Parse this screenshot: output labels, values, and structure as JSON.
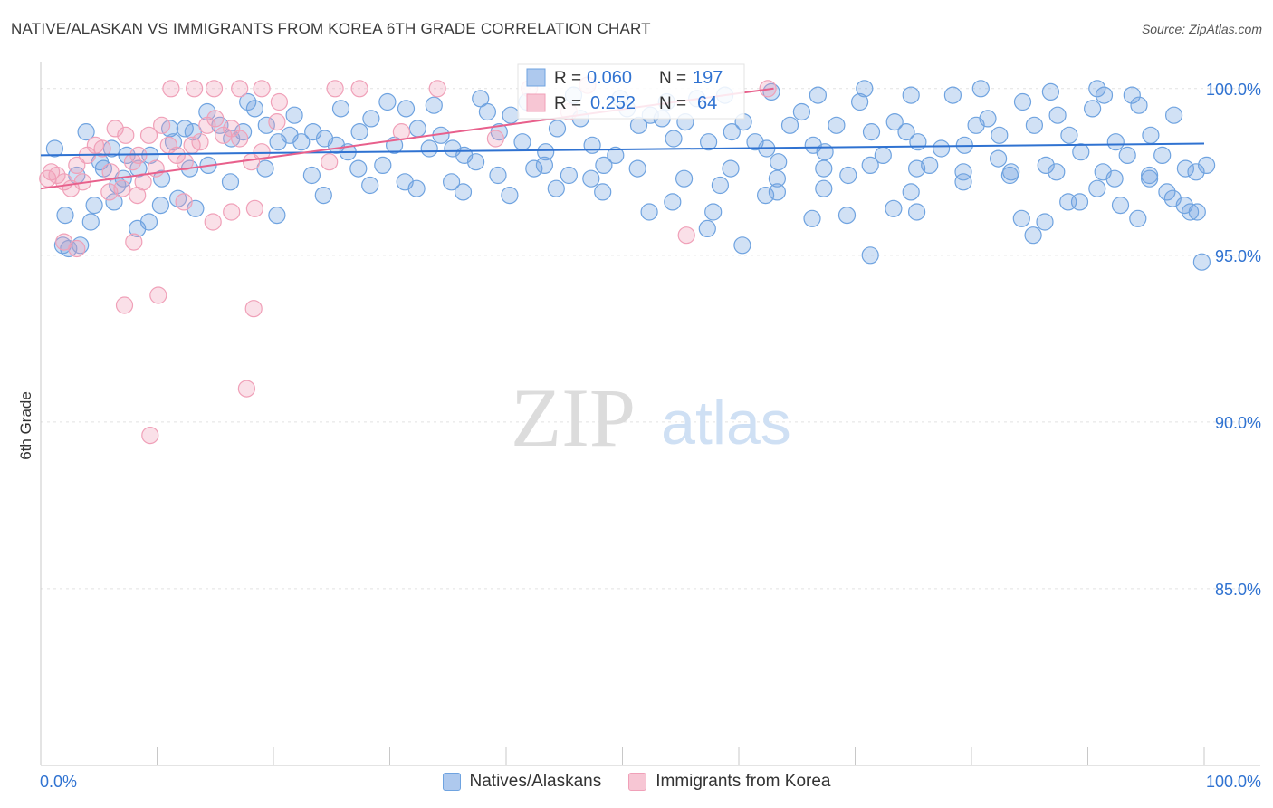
{
  "title": "NATIVE/ALASKAN VS IMMIGRANTS FROM KOREA 6TH GRADE CORRELATION CHART",
  "source": "Source: ZipAtlas.com",
  "watermark": {
    "zip": "ZIP",
    "atlas": "atlas"
  },
  "chart_data": {
    "type": "scatter",
    "xlabel": "",
    "ylabel": "6th Grade",
    "xlim": [
      0,
      100
    ],
    "ylim": [
      79.7,
      100.7
    ],
    "x_tick_labels": [
      {
        "value": 0,
        "label": "0.0%"
      },
      {
        "value": 100,
        "label": "100.0%"
      }
    ],
    "y_ticks": [
      {
        "value": 100,
        "label": "100.0%"
      },
      {
        "value": 95,
        "label": "95.0%"
      },
      {
        "value": 90,
        "label": "90.0%"
      },
      {
        "value": 85,
        "label": "85.0%"
      }
    ],
    "stats": [
      {
        "series": "Natives/Alaskans",
        "r_label": "R = ",
        "r": "0.060",
        "n_label": "N = ",
        "n": "197"
      },
      {
        "series": "Immigrants from Korea",
        "r_label": "R = ",
        "r": "0.252",
        "n_label": "N = ",
        "n": "64"
      }
    ],
    "series": [
      {
        "name": "Natives/Alaskans",
        "color": "#6fa3e0",
        "line_color": "#2f72d1",
        "trend": {
          "x": [
            0,
            100
          ],
          "y": [
            98.0,
            98.35
          ]
        },
        "points": [
          [
            1.2,
            98.2
          ],
          [
            1.9,
            95.3
          ],
          [
            2.4,
            95.2
          ],
          [
            3.4,
            95.3
          ],
          [
            3.9,
            98.7
          ],
          [
            4.6,
            96.5
          ],
          [
            5.4,
            97.6
          ],
          [
            6.1,
            98.2
          ],
          [
            6.6,
            97.1
          ],
          [
            7.4,
            98.0
          ],
          [
            8.4,
            97.6
          ],
          [
            9.4,
            98.0
          ],
          [
            10.4,
            97.3
          ],
          [
            11.1,
            98.8
          ],
          [
            11.4,
            98.4
          ],
          [
            12.4,
            98.8
          ],
          [
            13.1,
            98.7
          ],
          [
            14.4,
            97.7
          ],
          [
            15.4,
            98.9
          ],
          [
            16.4,
            98.5
          ],
          [
            17.4,
            98.7
          ],
          [
            18.4,
            99.4
          ],
          [
            19.4,
            98.9
          ],
          [
            20.4,
            98.4
          ],
          [
            21.4,
            98.6
          ],
          [
            22.4,
            98.4
          ],
          [
            23.4,
            98.7
          ],
          [
            24.4,
            98.5
          ],
          [
            25.4,
            98.3
          ],
          [
            26.4,
            98.1
          ],
          [
            27.4,
            98.7
          ],
          [
            28.4,
            99.1
          ],
          [
            29.4,
            97.7
          ],
          [
            30.4,
            98.3
          ],
          [
            31.4,
            99.4
          ],
          [
            32.4,
            98.8
          ],
          [
            33.4,
            98.2
          ],
          [
            34.4,
            98.6
          ],
          [
            35.4,
            98.2
          ],
          [
            36.4,
            98.0
          ],
          [
            37.4,
            97.8
          ],
          [
            38.4,
            99.3
          ],
          [
            39.4,
            98.7
          ],
          [
            40.4,
            99.2
          ],
          [
            41.4,
            98.4
          ],
          [
            42.4,
            97.6
          ],
          [
            43.4,
            98.1
          ],
          [
            44.4,
            98.8
          ],
          [
            45.4,
            97.4
          ],
          [
            46.4,
            99.1
          ],
          [
            47.4,
            98.3
          ],
          [
            48.4,
            97.7
          ],
          [
            49.4,
            98.0
          ],
          [
            50.4,
            99.4
          ],
          [
            51.4,
            98.9
          ],
          [
            52.4,
            99.2
          ],
          [
            53.4,
            99.1
          ],
          [
            54.4,
            98.5
          ],
          [
            55.4,
            99.0
          ],
          [
            56.4,
            99.7
          ],
          [
            57.4,
            98.4
          ],
          [
            58.4,
            97.1
          ],
          [
            59.4,
            98.7
          ],
          [
            60.4,
            99.0
          ],
          [
            61.4,
            98.4
          ],
          [
            62.4,
            98.2
          ],
          [
            63.4,
            97.8
          ],
          [
            64.4,
            98.9
          ],
          [
            65.4,
            99.3
          ],
          [
            66.4,
            98.3
          ],
          [
            67.4,
            98.1
          ],
          [
            68.4,
            98.9
          ],
          [
            69.4,
            97.4
          ],
          [
            70.4,
            99.6
          ],
          [
            71.4,
            98.7
          ],
          [
            72.4,
            98.0
          ],
          [
            73.4,
            99.0
          ],
          [
            74.4,
            98.7
          ],
          [
            75.4,
            98.4
          ],
          [
            76.4,
            97.7
          ],
          [
            77.4,
            98.2
          ],
          [
            78.4,
            99.8
          ],
          [
            79.4,
            98.3
          ],
          [
            80.4,
            98.9
          ],
          [
            81.4,
            99.1
          ],
          [
            82.4,
            98.6
          ],
          [
            83.4,
            97.5
          ],
          [
            84.4,
            99.6
          ],
          [
            85.4,
            98.9
          ],
          [
            86.4,
            97.7
          ],
          [
            87.4,
            99.2
          ],
          [
            88.4,
            98.6
          ],
          [
            89.4,
            98.1
          ],
          [
            90.4,
            99.4
          ],
          [
            91.4,
            99.8
          ],
          [
            92.4,
            98.4
          ],
          [
            93.4,
            98.0
          ],
          [
            94.4,
            99.5
          ],
          [
            95.4,
            98.6
          ],
          [
            96.4,
            98.0
          ],
          [
            97.4,
            99.2
          ],
          [
            98.4,
            97.6
          ],
          [
            99.4,
            96.3
          ],
          [
            99.8,
            94.8
          ],
          [
            100.2,
            97.7
          ],
          [
            57.3,
            95.8
          ],
          [
            60.3,
            95.3
          ],
          [
            63.3,
            96.9
          ],
          [
            67.3,
            97.0
          ],
          [
            71.3,
            95.0
          ],
          [
            73.3,
            96.4
          ],
          [
            75.3,
            96.3
          ],
          [
            82.3,
            97.9
          ],
          [
            85.3,
            95.6
          ],
          [
            89.3,
            96.6
          ],
          [
            92.3,
            97.3
          ],
          [
            94.3,
            96.1
          ],
          [
            97.3,
            96.7
          ],
          [
            98.8,
            96.3
          ],
          [
            9.3,
            96.0
          ],
          [
            10.3,
            96.5
          ],
          [
            11.8,
            96.7
          ],
          [
            13.3,
            96.4
          ],
          [
            20.3,
            96.2
          ],
          [
            52.3,
            96.3
          ],
          [
            54.3,
            96.6
          ],
          [
            57.8,
            96.3
          ],
          [
            62.3,
            96.8
          ],
          [
            66.3,
            96.1
          ],
          [
            69.3,
            96.2
          ],
          [
            74.8,
            96.9
          ],
          [
            79.3,
            97.2
          ],
          [
            84.3,
            96.1
          ],
          [
            86.3,
            96.0
          ],
          [
            88.3,
            96.6
          ],
          [
            90.8,
            97.0
          ],
          [
            92.8,
            96.5
          ],
          [
            95.3,
            97.4
          ],
          [
            96.8,
            96.9
          ],
          [
            98.3,
            96.5
          ],
          [
            12.8,
            97.6
          ],
          [
            16.3,
            97.2
          ],
          [
            19.3,
            97.6
          ],
          [
            23.3,
            97.4
          ],
          [
            27.3,
            97.6
          ],
          [
            31.3,
            97.2
          ],
          [
            35.3,
            97.2
          ],
          [
            39.3,
            97.4
          ],
          [
            43.3,
            97.7
          ],
          [
            47.3,
            97.3
          ],
          [
            51.3,
            97.6
          ],
          [
            55.3,
            97.3
          ],
          [
            59.3,
            97.6
          ],
          [
            63.3,
            97.3
          ],
          [
            67.3,
            97.6
          ],
          [
            71.3,
            97.7
          ],
          [
            75.3,
            97.6
          ],
          [
            79.3,
            97.5
          ],
          [
            83.3,
            97.4
          ],
          [
            87.3,
            97.5
          ],
          [
            91.3,
            97.5
          ],
          [
            95.3,
            97.3
          ],
          [
            99.3,
            97.5
          ],
          [
            3.1,
            97.4
          ],
          [
            5.1,
            97.8
          ],
          [
            7.1,
            97.3
          ],
          [
            2.1,
            96.2
          ],
          [
            4.3,
            96.0
          ],
          [
            6.3,
            96.6
          ],
          [
            8.3,
            95.8
          ],
          [
            24.3,
            96.8
          ],
          [
            28.3,
            97.1
          ],
          [
            32.3,
            97.0
          ],
          [
            36.3,
            96.9
          ],
          [
            40.3,
            96.8
          ],
          [
            44.3,
            97.0
          ],
          [
            48.3,
            96.9
          ],
          [
            14.3,
            99.3
          ],
          [
            17.8,
            99.6
          ],
          [
            21.8,
            99.2
          ],
          [
            25.8,
            99.4
          ],
          [
            29.8,
            99.6
          ],
          [
            33.8,
            99.5
          ],
          [
            37.8,
            99.7
          ],
          [
            41.8,
            99.6
          ],
          [
            45.8,
            99.8
          ],
          [
            49.8,
            99.7
          ],
          [
            53.8,
            99.6
          ],
          [
            58.8,
            99.8
          ],
          [
            62.8,
            99.9
          ],
          [
            66.8,
            99.8
          ],
          [
            70.8,
            100.0
          ],
          [
            74.8,
            99.8
          ],
          [
            80.8,
            100.0
          ],
          [
            86.8,
            99.9
          ],
          [
            90.8,
            100.0
          ],
          [
            93.8,
            99.8
          ]
        ]
      },
      {
        "name": "Immigrants from Korea",
        "color": "#f0a0b8",
        "line_color": "#e8608c",
        "trend": {
          "x": [
            0,
            63
          ],
          "y": [
            97.0,
            100.0
          ]
        },
        "points": [
          [
            0.6,
            97.3
          ],
          [
            0.9,
            97.5
          ],
          [
            1.4,
            97.4
          ],
          [
            2.0,
            97.2
          ],
          [
            2.6,
            97.0
          ],
          [
            3.1,
            97.7
          ],
          [
            3.6,
            97.2
          ],
          [
            4.0,
            98.0
          ],
          [
            4.7,
            98.3
          ],
          [
            5.3,
            98.2
          ],
          [
            6.0,
            97.5
          ],
          [
            6.4,
            98.8
          ],
          [
            7.0,
            97.0
          ],
          [
            7.3,
            98.6
          ],
          [
            7.9,
            97.8
          ],
          [
            8.4,
            98.0
          ],
          [
            8.8,
            97.2
          ],
          [
            9.3,
            98.6
          ],
          [
            9.9,
            97.6
          ],
          [
            10.4,
            98.9
          ],
          [
            11.0,
            98.3
          ],
          [
            11.7,
            98.0
          ],
          [
            12.4,
            97.8
          ],
          [
            13.0,
            98.3
          ],
          [
            13.7,
            98.4
          ],
          [
            14.3,
            98.9
          ],
          [
            15.0,
            99.1
          ],
          [
            15.7,
            98.6
          ],
          [
            16.4,
            98.8
          ],
          [
            17.1,
            98.5
          ],
          [
            18.1,
            97.8
          ],
          [
            19.0,
            98.1
          ],
          [
            20.3,
            99.0
          ],
          [
            8.0,
            95.4
          ],
          [
            7.2,
            93.5
          ],
          [
            10.1,
            93.8
          ],
          [
            18.3,
            93.4
          ],
          [
            16.4,
            96.3
          ],
          [
            12.3,
            96.6
          ],
          [
            14.8,
            96.0
          ],
          [
            18.4,
            96.4
          ],
          [
            8.3,
            96.8
          ],
          [
            5.9,
            96.9
          ],
          [
            9.4,
            89.6
          ],
          [
            17.7,
            91.0
          ],
          [
            2.0,
            95.4
          ],
          [
            3.1,
            95.2
          ],
          [
            11.2,
            100.0
          ],
          [
            13.2,
            100.0
          ],
          [
            14.9,
            100.0
          ],
          [
            17.1,
            100.0
          ],
          [
            19.0,
            100.0
          ],
          [
            20.5,
            99.6
          ],
          [
            25.3,
            100.0
          ],
          [
            27.4,
            100.0
          ],
          [
            34.1,
            100.0
          ],
          [
            42.0,
            100.0
          ],
          [
            47.0,
            100.1
          ],
          [
            62.5,
            100.0
          ],
          [
            31.0,
            98.7
          ],
          [
            24.8,
            97.8
          ],
          [
            39.1,
            98.5
          ],
          [
            55.5,
            95.6
          ],
          [
            45.4,
            99.3
          ]
        ]
      }
    ]
  },
  "legend": [
    {
      "label": "Natives/Alaskans",
      "color": "#aec9ee",
      "border": "#6fa3e0"
    },
    {
      "label": "Immigrants from Korea",
      "color": "#f7c6d4",
      "border": "#f0a0b8"
    }
  ]
}
